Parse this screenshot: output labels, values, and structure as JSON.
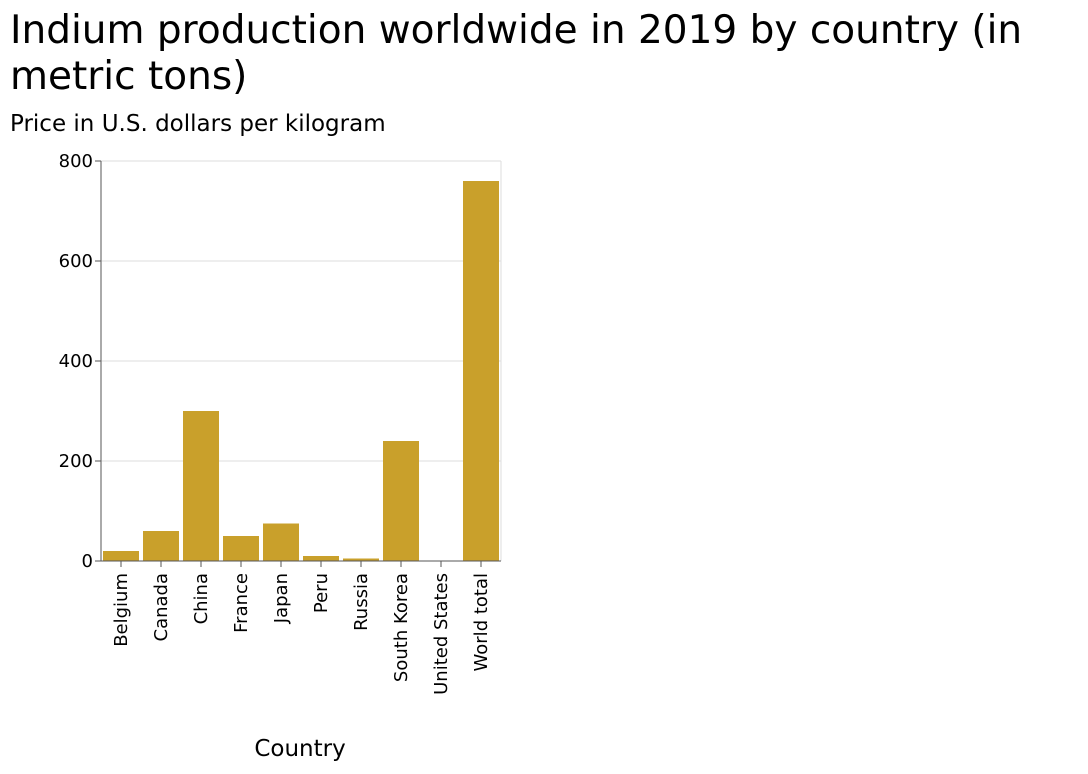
{
  "chart_data": {
    "type": "bar",
    "title": "Indium production worldwide in 2019 by country (in metric tons)",
    "ylabel": "Price in U.S. dollars per kilogram",
    "xlabel": "Country",
    "categories": [
      "Belgium",
      "Canada",
      "China",
      "France",
      "Japan",
      "Peru",
      "Russia",
      "South Korea",
      "United States",
      "World total"
    ],
    "values": [
      20,
      60,
      300,
      50,
      75,
      10,
      5,
      240,
      0,
      760
    ],
    "ylim": [
      0,
      800
    ],
    "yticks": [
      0,
      200,
      400,
      600,
      800
    ],
    "grid": true,
    "bar_color": "#c9a02b",
    "grid_color": "#dddddd",
    "axis_color": "#555555"
  }
}
